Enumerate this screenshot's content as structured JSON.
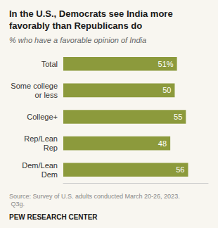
{
  "chart_data": {
    "type": "bar",
    "orientation": "horizontal",
    "title": "In the U.S., Democrats see India more favorably than Republicans do",
    "subtitle": "% who have a favorable opinion of India",
    "annotations": [
      "Source: Survey of U.S. adults conducted March 20-26, 2023. Q3g.",
      "PEW RESEARCH CENTER"
    ],
    "categories": [
      "Total",
      "Some college\nor less",
      "College+",
      "Rep/Lean\nRep",
      "Dem/Lean\nDem"
    ],
    "values": [
      51,
      50,
      55,
      48,
      56
    ],
    "value_labels": [
      "51%",
      "50",
      "55",
      "48",
      "56"
    ],
    "color": "#8c9a3c",
    "xlim": [
      0,
      65
    ],
    "data_labels": true,
    "tick_labels": "y",
    "grid": false
  }
}
